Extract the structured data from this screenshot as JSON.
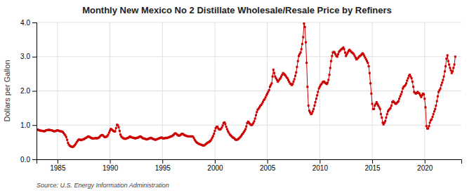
{
  "chart_data": {
    "type": "line",
    "title": "Monthly New Mexico No 2 Distillate Wholesale/Resale Price by Refiners",
    "y_label": "Dollars per Gallon",
    "annotations": [
      "Source: U.S. Energy Information Administration"
    ],
    "color": "#cc0000",
    "marker": "square",
    "line_style": "solid",
    "grid": true,
    "xlim": [
      1983.0,
      2023.5
    ],
    "ylim": [
      0.0,
      4.0
    ],
    "xticks": [
      1985,
      1990,
      1995,
      2000,
      2005,
      2010,
      2015,
      2020
    ],
    "yticks": [
      {
        "value": 0.0,
        "label": "0.0"
      },
      {
        "value": 1.0,
        "label": "1.0"
      },
      {
        "value": 2.0,
        "label": "2.0"
      },
      {
        "value": 3.0,
        "label": "3.0"
      },
      {
        "value": 4.0,
        "label": "4.0"
      }
    ],
    "x": [
      1983.08,
      1983.17,
      1983.25,
      1983.33,
      1983.42,
      1983.5,
      1983.58,
      1983.67,
      1983.75,
      1983.83,
      1983.92,
      1984.0,
      1984.08,
      1984.17,
      1984.25,
      1984.33,
      1984.42,
      1984.5,
      1984.58,
      1984.67,
      1984.75,
      1984.83,
      1984.92,
      1985.0,
      1985.08,
      1985.17,
      1985.25,
      1985.33,
      1985.42,
      1985.5,
      1985.58,
      1985.67,
      1985.75,
      1985.83,
      1985.92,
      1986.0,
      1986.08,
      1986.17,
      1986.25,
      1986.33,
      1986.42,
      1986.5,
      1986.58,
      1986.67,
      1986.75,
      1986.83,
      1986.92,
      1987.0,
      1987.08,
      1987.17,
      1987.25,
      1987.33,
      1987.42,
      1987.5,
      1987.58,
      1987.67,
      1987.75,
      1987.83,
      1987.92,
      1988.0,
      1988.08,
      1988.17,
      1988.25,
      1988.33,
      1988.42,
      1988.5,
      1988.58,
      1988.67,
      1988.75,
      1988.83,
      1988.92,
      1989.0,
      1989.08,
      1989.17,
      1989.25,
      1989.33,
      1989.42,
      1989.5,
      1989.58,
      1989.67,
      1989.75,
      1989.83,
      1989.92,
      1990.0,
      1990.08,
      1990.17,
      1990.25,
      1990.33,
      1990.42,
      1990.5,
      1990.58,
      1990.67,
      1990.75,
      1990.83,
      1990.92,
      1991.0,
      1991.08,
      1991.17,
      1991.25,
      1991.33,
      1991.42,
      1991.5,
      1991.58,
      1991.67,
      1991.75,
      1991.83,
      1991.92,
      1992.0,
      1992.08,
      1992.17,
      1992.25,
      1992.33,
      1992.42,
      1992.5,
      1992.58,
      1992.67,
      1992.75,
      1992.83,
      1992.92,
      1993.0,
      1993.08,
      1993.17,
      1993.25,
      1993.33,
      1993.42,
      1993.5,
      1993.58,
      1993.67,
      1993.75,
      1993.83,
      1993.92,
      1994.0,
      1994.08,
      1994.17,
      1994.25,
      1994.33,
      1994.42,
      1994.5,
      1994.58,
      1994.67,
      1994.75,
      1994.83,
      1994.92,
      1995.0,
      1995.08,
      1995.17,
      1995.25,
      1995.33,
      1995.42,
      1995.5,
      1995.58,
      1995.67,
      1995.75,
      1995.83,
      1995.92,
      1996.0,
      1996.08,
      1996.17,
      1996.25,
      1996.33,
      1996.42,
      1996.5,
      1996.58,
      1996.67,
      1996.75,
      1996.83,
      1996.92,
      1997.0,
      1997.08,
      1997.17,
      1997.25,
      1997.33,
      1997.42,
      1997.5,
      1997.58,
      1997.67,
      1997.75,
      1997.83,
      1997.92,
      1998.0,
      1998.08,
      1998.17,
      1998.25,
      1998.33,
      1998.42,
      1998.5,
      1998.58,
      1998.67,
      1998.75,
      1998.83,
      1998.92,
      1999.0,
      1999.08,
      1999.17,
      1999.25,
      1999.33,
      1999.42,
      1999.5,
      1999.58,
      1999.67,
      1999.75,
      1999.83,
      1999.92,
      2000.0,
      2000.08,
      2000.17,
      2000.25,
      2000.33,
      2000.42,
      2000.5,
      2000.58,
      2000.67,
      2000.75,
      2000.83,
      2000.92,
      2001.0,
      2001.08,
      2001.17,
      2001.25,
      2001.33,
      2001.42,
      2001.5,
      2001.58,
      2001.67,
      2001.75,
      2001.83,
      2001.92,
      2002.0,
      2002.08,
      2002.17,
      2002.25,
      2002.33,
      2002.42,
      2002.5,
      2002.58,
      2002.67,
      2002.75,
      2002.83,
      2002.92,
      2003.0,
      2003.08,
      2003.17,
      2003.25,
      2003.33,
      2003.42,
      2003.5,
      2003.58,
      2003.67,
      2003.75,
      2003.83,
      2003.92,
      2004.0,
      2004.08,
      2004.17,
      2004.25,
      2004.33,
      2004.42,
      2004.5,
      2004.58,
      2004.67,
      2004.75,
      2004.83,
      2004.92,
      2005.0,
      2005.08,
      2005.17,
      2005.25,
      2005.33,
      2005.42,
      2005.5,
      2005.58,
      2005.67,
      2005.75,
      2005.83,
      2005.92,
      2006.0,
      2006.08,
      2006.17,
      2006.25,
      2006.33,
      2006.42,
      2006.5,
      2006.58,
      2006.67,
      2006.75,
      2006.83,
      2006.92,
      2007.0,
      2007.08,
      2007.17,
      2007.25,
      2007.33,
      2007.42,
      2007.5,
      2007.58,
      2007.67,
      2007.75,
      2007.83,
      2007.92,
      2008.0,
      2008.08,
      2008.17,
      2008.25,
      2008.33,
      2008.42,
      2008.5,
      2008.58,
      2008.67,
      2008.75,
      2008.83,
      2008.92,
      2009.0,
      2009.08,
      2009.17,
      2009.25,
      2009.33,
      2009.42,
      2009.5,
      2009.58,
      2009.67,
      2009.75,
      2009.83,
      2009.92,
      2010.0,
      2010.08,
      2010.17,
      2010.25,
      2010.33,
      2010.42,
      2010.5,
      2010.58,
      2010.67,
      2010.75,
      2010.83,
      2010.92,
      2011.0,
      2011.08,
      2011.17,
      2011.25,
      2011.33,
      2011.42,
      2011.5,
      2011.58,
      2011.67,
      2011.75,
      2011.83,
      2011.92,
      2012.0,
      2012.08,
      2012.17,
      2012.25,
      2012.33,
      2012.42,
      2012.5,
      2012.58,
      2012.67,
      2012.75,
      2012.83,
      2012.92,
      2013.0,
      2013.08,
      2013.17,
      2013.25,
      2013.33,
      2013.42,
      2013.5,
      2013.58,
      2013.67,
      2013.75,
      2013.83,
      2013.92,
      2014.0,
      2014.08,
      2014.17,
      2014.25,
      2014.33,
      2014.42,
      2014.5,
      2014.58,
      2014.67,
      2014.75,
      2014.83,
      2014.92,
      2015.0,
      2015.08,
      2015.17,
      2015.25,
      2015.33,
      2015.42,
      2015.5,
      2015.58,
      2015.67,
      2015.75,
      2015.83,
      2015.92,
      2016.0,
      2016.08,
      2016.17,
      2016.25,
      2016.33,
      2016.42,
      2016.5,
      2016.58,
      2016.67,
      2016.75,
      2016.83,
      2016.92,
      2017.0,
      2017.08,
      2017.17,
      2017.25,
      2017.33,
      2017.42,
      2017.5,
      2017.58,
      2017.67,
      2017.75,
      2017.83,
      2017.92,
      2018.0,
      2018.08,
      2018.17,
      2018.25,
      2018.33,
      2018.42,
      2018.5,
      2018.58,
      2018.67,
      2018.75,
      2018.83,
      2018.92,
      2019.0,
      2019.08,
      2019.17,
      2019.25,
      2019.33,
      2019.42,
      2019.5,
      2019.58,
      2019.67,
      2019.75,
      2019.83,
      2019.92,
      2020.0,
      2020.08,
      2020.17,
      2020.25,
      2020.33,
      2020.42,
      2020.5,
      2020.58,
      2020.67,
      2020.75,
      2020.83,
      2020.92,
      2021.0,
      2021.08,
      2021.17,
      2021.25,
      2021.33,
      2021.42,
      2021.5,
      2021.58,
      2021.67,
      2021.75,
      2021.83,
      2021.92,
      2022.0,
      2022.08,
      2022.17,
      2022.25,
      2022.33,
      2022.42,
      2022.5,
      2022.58,
      2022.67,
      2022.75,
      2022.83,
      2022.92
    ],
    "values": [
      0.87,
      0.86,
      0.85,
      0.84,
      0.84,
      0.83,
      0.83,
      0.82,
      0.82,
      0.83,
      0.85,
      0.85,
      0.86,
      0.86,
      0.86,
      0.85,
      0.85,
      0.84,
      0.83,
      0.82,
      0.82,
      0.83,
      0.84,
      0.85,
      0.84,
      0.83,
      0.82,
      0.82,
      0.81,
      0.8,
      0.77,
      0.73,
      0.7,
      0.65,
      0.57,
      0.48,
      0.43,
      0.4,
      0.38,
      0.37,
      0.36,
      0.37,
      0.39,
      0.42,
      0.46,
      0.5,
      0.54,
      0.57,
      0.58,
      0.57,
      0.56,
      0.57,
      0.58,
      0.59,
      0.6,
      0.62,
      0.63,
      0.65,
      0.67,
      0.66,
      0.65,
      0.63,
      0.62,
      0.61,
      0.61,
      0.61,
      0.62,
      0.62,
      0.61,
      0.62,
      0.63,
      0.65,
      0.68,
      0.7,
      0.71,
      0.7,
      0.67,
      0.65,
      0.65,
      0.66,
      0.68,
      0.72,
      0.78,
      0.84,
      0.89,
      0.87,
      0.85,
      0.83,
      0.81,
      0.82,
      0.91,
      1.01,
      1.0,
      0.94,
      0.83,
      0.72,
      0.67,
      0.64,
      0.62,
      0.61,
      0.6,
      0.6,
      0.61,
      0.62,
      0.63,
      0.65,
      0.67,
      0.65,
      0.64,
      0.63,
      0.63,
      0.62,
      0.61,
      0.62,
      0.63,
      0.63,
      0.65,
      0.66,
      0.67,
      0.65,
      0.63,
      0.61,
      0.61,
      0.6,
      0.59,
      0.58,
      0.59,
      0.6,
      0.61,
      0.62,
      0.63,
      0.61,
      0.6,
      0.59,
      0.58,
      0.57,
      0.58,
      0.59,
      0.6,
      0.61,
      0.62,
      0.63,
      0.64,
      0.62,
      0.61,
      0.61,
      0.62,
      0.63,
      0.62,
      0.63,
      0.64,
      0.65,
      0.66,
      0.67,
      0.68,
      0.7,
      0.72,
      0.75,
      0.76,
      0.74,
      0.72,
      0.7,
      0.69,
      0.7,
      0.72,
      0.74,
      0.75,
      0.73,
      0.71,
      0.7,
      0.69,
      0.68,
      0.67,
      0.67,
      0.67,
      0.67,
      0.67,
      0.67,
      0.66,
      0.62,
      0.57,
      0.53,
      0.5,
      0.48,
      0.46,
      0.45,
      0.44,
      0.43,
      0.42,
      0.41,
      0.4,
      0.41,
      0.43,
      0.45,
      0.47,
      0.49,
      0.5,
      0.52,
      0.54,
      0.58,
      0.63,
      0.68,
      0.75,
      0.83,
      0.91,
      0.95,
      0.95,
      0.9,
      0.87,
      0.87,
      0.89,
      0.93,
      0.99,
      1.06,
      1.08,
      1.03,
      0.95,
      0.88,
      0.82,
      0.78,
      0.73,
      0.7,
      0.68,
      0.65,
      0.63,
      0.62,
      0.59,
      0.57,
      0.57,
      0.58,
      0.6,
      0.62,
      0.65,
      0.68,
      0.72,
      0.75,
      0.79,
      0.83,
      0.88,
      0.96,
      1.06,
      1.1,
      1.07,
      1.04,
      1.01,
      1.0,
      1.02,
      1.06,
      1.11,
      1.19,
      1.29,
      1.38,
      1.45,
      1.48,
      1.52,
      1.56,
      1.59,
      1.63,
      1.68,
      1.73,
      1.76,
      1.81,
      1.87,
      1.92,
      1.97,
      2.02,
      2.12,
      2.17,
      2.22,
      2.42,
      2.62,
      2.52,
      2.42,
      2.37,
      2.32,
      2.27,
      2.3,
      2.34,
      2.37,
      2.42,
      2.47,
      2.52,
      2.5,
      2.47,
      2.44,
      2.4,
      2.37,
      2.32,
      2.27,
      2.22,
      2.2,
      2.17,
      2.2,
      2.27,
      2.34,
      2.44,
      2.54,
      2.7,
      2.87,
      3.02,
      3.07,
      3.12,
      3.22,
      3.37,
      3.57,
      3.97,
      3.87,
      3.42,
      2.82,
      2.12,
      1.57,
      1.42,
      1.37,
      1.32,
      1.34,
      1.4,
      1.47,
      1.57,
      1.67,
      1.77,
      1.87,
      1.97,
      2.07,
      2.12,
      2.17,
      2.2,
      2.24,
      2.27,
      2.27,
      2.24,
      2.22,
      2.2,
      2.24,
      2.32,
      2.47,
      2.67,
      2.87,
      3.02,
      3.12,
      3.14,
      3.12,
      3.07,
      3.02,
      3.0,
      3.07,
      3.14,
      3.17,
      3.2,
      3.22,
      3.24,
      3.27,
      3.22,
      3.12,
      3.02,
      3.07,
      3.12,
      3.17,
      3.2,
      3.17,
      3.14,
      3.12,
      3.1,
      3.07,
      3.02,
      2.97,
      2.92,
      2.94,
      2.97,
      3.0,
      3.02,
      3.04,
      3.07,
      3.1,
      3.07,
      3.02,
      2.97,
      2.92,
      2.87,
      2.82,
      2.72,
      2.52,
      2.22,
      1.92,
      1.62,
      1.47,
      1.47,
      1.57,
      1.62,
      1.67,
      1.62,
      1.57,
      1.52,
      1.47,
      1.32,
      1.22,
      1.07,
      1.02,
      1.07,
      1.12,
      1.22,
      1.32,
      1.4,
      1.44,
      1.47,
      1.5,
      1.57,
      1.67,
      1.7,
      1.67,
      1.64,
      1.62,
      1.64,
      1.67,
      1.7,
      1.77,
      1.84,
      1.9,
      1.97,
      2.07,
      2.12,
      2.14,
      2.17,
      2.22,
      2.3,
      2.37,
      2.44,
      2.47,
      2.42,
      2.37,
      2.27,
      2.12,
      1.97,
      1.94,
      1.92,
      1.94,
      1.97,
      1.94,
      1.92,
      1.87,
      1.82,
      1.87,
      1.92,
      1.9,
      1.77,
      1.52,
      0.97,
      0.9,
      0.9,
      0.97,
      1.07,
      1.14,
      1.17,
      1.24,
      1.32,
      1.4,
      1.47,
      1.57,
      1.7,
      1.84,
      1.97,
      2.02,
      2.07,
      2.17,
      2.24,
      2.32,
      2.42,
      2.57,
      2.72,
      2.94,
      3.04,
      2.87,
      2.77,
      2.67,
      2.6,
      2.52,
      2.57,
      2.67,
      2.77,
      3.0
    ]
  }
}
